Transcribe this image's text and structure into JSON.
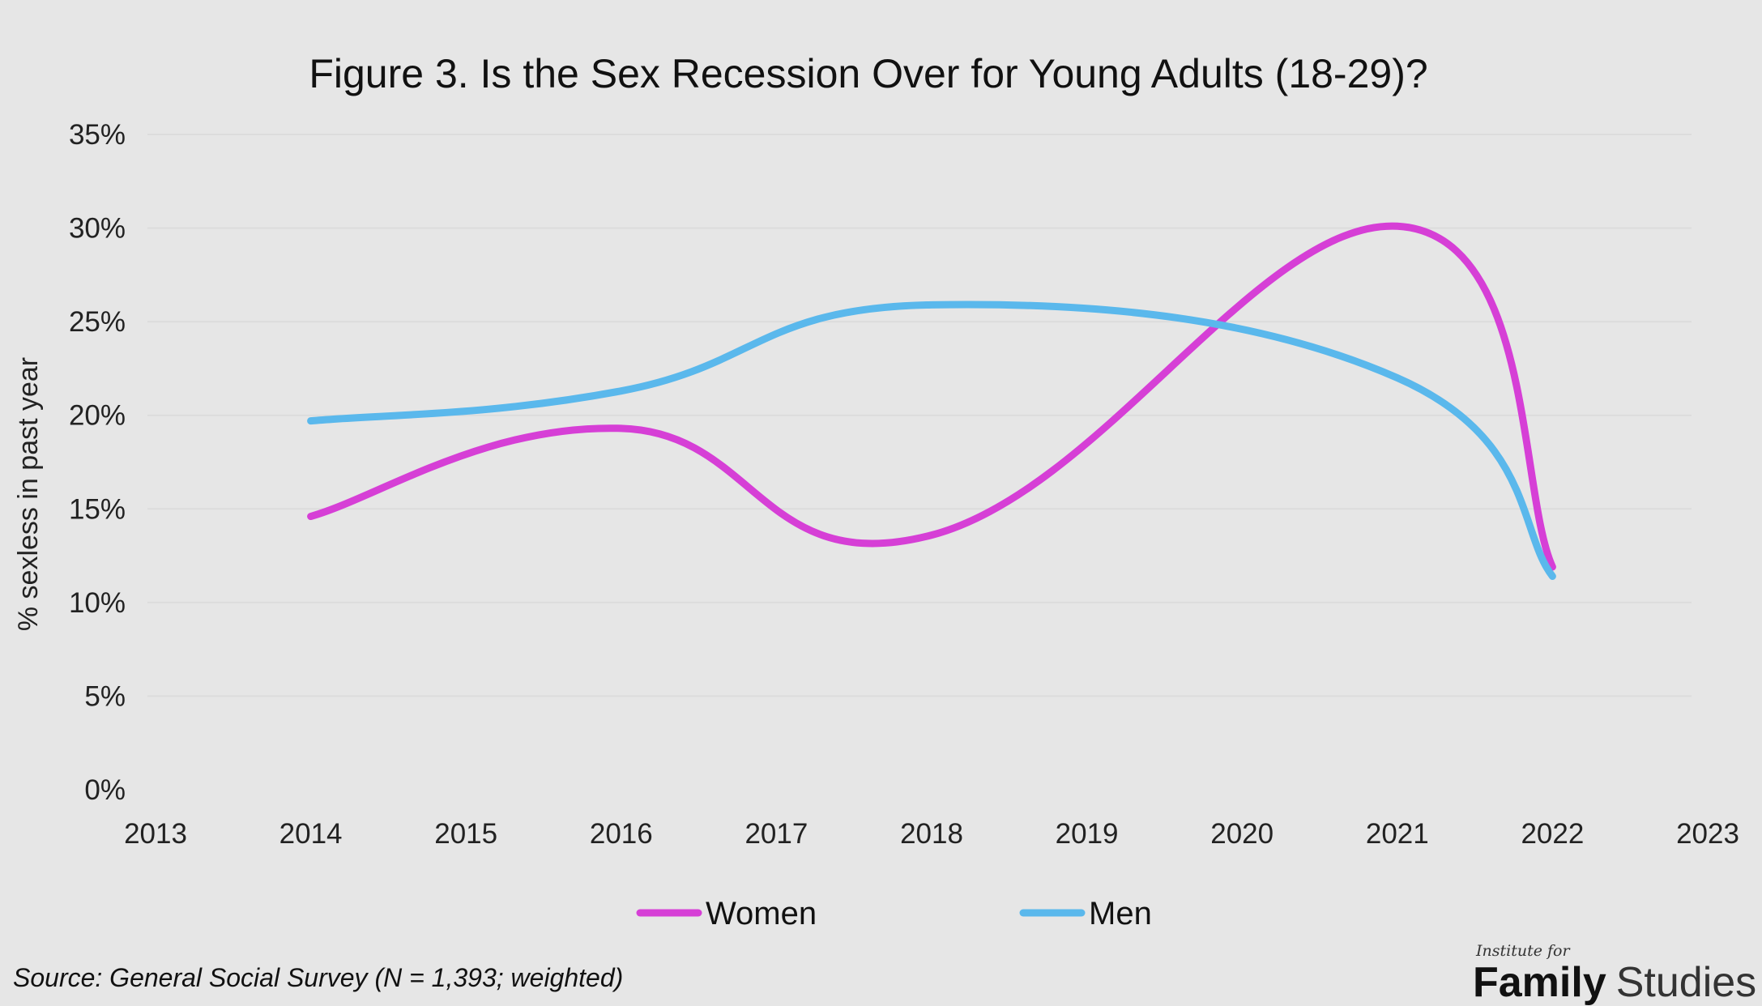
{
  "chart_data": {
    "type": "line",
    "title": "Figure 3. Is the Sex Recession Over for Young Adults (18-29)?",
    "xlabel": "",
    "ylabel": "% sexless in past year",
    "x": [
      2014,
      2016,
      2018,
      2021,
      2022
    ],
    "xlim": [
      2013,
      2023
    ],
    "xticks": [
      "2013",
      "2014",
      "2015",
      "2016",
      "2017",
      "2018",
      "2019",
      "2020",
      "2021",
      "2022",
      "2023"
    ],
    "ylim": [
      0,
      35
    ],
    "yticks": [
      "0%",
      "5%",
      "10%",
      "15%",
      "20%",
      "25%",
      "30%",
      "35%"
    ],
    "grid": true,
    "smooth": true,
    "series": [
      {
        "name": "Women",
        "color": "#d63fd6",
        "x": [
          2014,
          2016,
          2018,
          2021,
          2022
        ],
        "values": [
          14.6,
          19.3,
          13.6,
          30.1,
          11.9
        ]
      },
      {
        "name": "Men",
        "color": "#5ab8ec",
        "x": [
          2014,
          2016,
          2018,
          2021,
          2022
        ],
        "values": [
          19.7,
          21.3,
          25.9,
          22.0,
          11.4
        ]
      }
    ],
    "legend": {
      "position": "bottom",
      "items": [
        "Women",
        "Men"
      ]
    }
  },
  "source": "Source: General Social Survey (N = 1,393; weighted)",
  "logo": {
    "small_text": "Institute for",
    "bold_text": "Family",
    "light_text": "Studies"
  }
}
